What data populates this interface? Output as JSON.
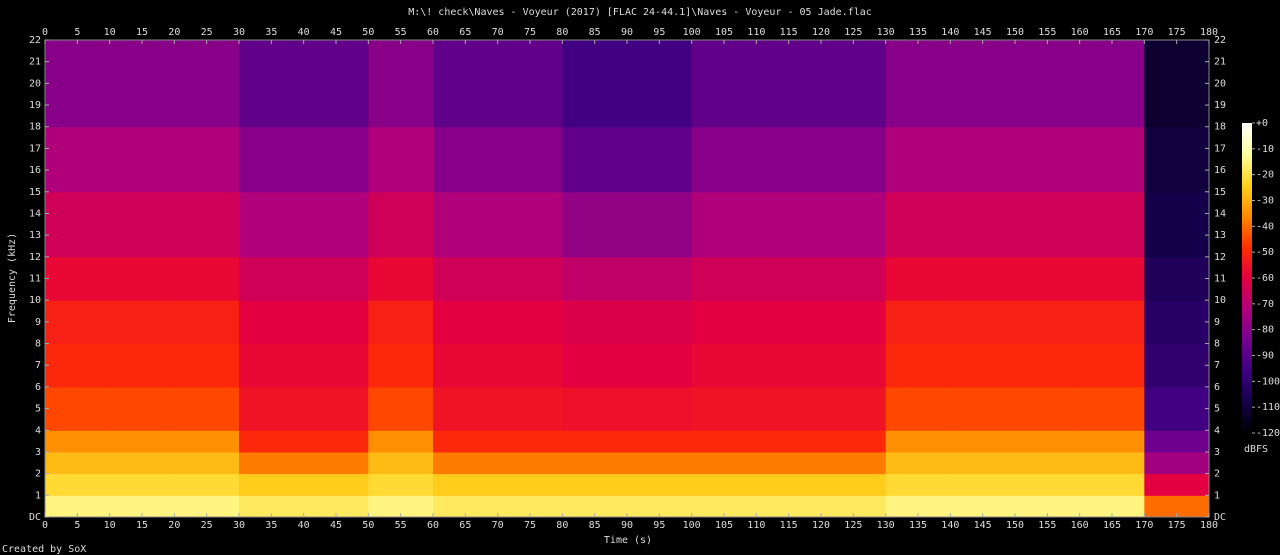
{
  "chart_data": {
    "type": "spectrogram",
    "title": "M:\\! check\\Naves - Voyeur (2017) [FLAC 24-44.1]\\Naves - Voyeur - 05 Jade.flac",
    "xlabel": "Time (s)",
    "ylabel": "Frequency (kHz)",
    "colorbar_label": "dBFS",
    "footer": "Created by SoX",
    "xlim": [
      0,
      180
    ],
    "ylim": [
      0,
      22
    ],
    "zlim": [
      -120,
      0
    ],
    "xticks": [
      0,
      5,
      10,
      15,
      20,
      25,
      30,
      35,
      40,
      45,
      50,
      55,
      60,
      65,
      70,
      75,
      80,
      85,
      90,
      95,
      100,
      105,
      110,
      115,
      120,
      125,
      130,
      135,
      140,
      145,
      150,
      155,
      160,
      165,
      170,
      175,
      180
    ],
    "yticks": [
      {
        "value": 0,
        "label": "DC"
      },
      1,
      2,
      3,
      4,
      5,
      6,
      7,
      8,
      9,
      10,
      11,
      12,
      13,
      14,
      15,
      16,
      17,
      18,
      19,
      20,
      21,
      22
    ],
    "zticks": [
      {
        "value": 0,
        "label": "+0"
      },
      -10,
      -20,
      -30,
      -40,
      -50,
      -60,
      -70,
      -80,
      -90,
      -100,
      -110,
      -120
    ],
    "time_edges": [
      0,
      10,
      20,
      30,
      40,
      50,
      60,
      70,
      80,
      90,
      100,
      110,
      120,
      130,
      140,
      150,
      160,
      170,
      180
    ],
    "freq_edges": [
      0,
      1,
      2,
      3,
      4,
      6,
      8,
      10,
      12,
      15,
      18,
      22
    ],
    "z": [
      [
        -15,
        -15,
        -15,
        -18,
        -18,
        -15,
        -18,
        -18,
        -18,
        -18,
        -18,
        -18,
        -18,
        -15,
        -15,
        -15,
        -15,
        -40
      ],
      [
        -22,
        -22,
        -22,
        -25,
        -25,
        -22,
        -25,
        -25,
        -25,
        -25,
        -25,
        -25,
        -25,
        -22,
        -22,
        -22,
        -22,
        -60
      ],
      [
        -28,
        -28,
        -28,
        -38,
        -38,
        -28,
        -38,
        -38,
        -38,
        -38,
        -38,
        -38,
        -38,
        -28,
        -28,
        -28,
        -28,
        -75
      ],
      [
        -35,
        -35,
        -35,
        -50,
        -50,
        -35,
        -50,
        -50,
        -50,
        -50,
        -50,
        -50,
        -50,
        -35,
        -35,
        -35,
        -35,
        -85
      ],
      [
        -45,
        -45,
        -45,
        -55,
        -55,
        -45,
        -55,
        -55,
        -56,
        -56,
        -55,
        -55,
        -55,
        -45,
        -45,
        -45,
        -45,
        -95
      ],
      [
        -50,
        -50,
        -50,
        -58,
        -58,
        -50,
        -58,
        -58,
        -60,
        -60,
        -58,
        -58,
        -58,
        -50,
        -50,
        -50,
        -50,
        -100
      ],
      [
        -52,
        -52,
        -52,
        -60,
        -60,
        -52,
        -60,
        -60,
        -62,
        -62,
        -60,
        -60,
        -60,
        -52,
        -52,
        -52,
        -52,
        -102
      ],
      [
        -58,
        -58,
        -58,
        -65,
        -65,
        -58,
        -65,
        -65,
        -68,
        -68,
        -65,
        -65,
        -65,
        -58,
        -58,
        -58,
        -58,
        -105
      ],
      [
        -65,
        -65,
        -65,
        -72,
        -72,
        -65,
        -72,
        -72,
        -78,
        -78,
        -72,
        -72,
        -72,
        -65,
        -65,
        -65,
        -65,
        -108
      ],
      [
        -72,
        -72,
        -72,
        -80,
        -80,
        -72,
        -80,
        -80,
        -88,
        -88,
        -80,
        -80,
        -80,
        -72,
        -72,
        -72,
        -72,
        -110
      ],
      [
        -80,
        -80,
        -80,
        -88,
        -88,
        -80,
        -88,
        -88,
        -95,
        -95,
        -88,
        -88,
        -88,
        -80,
        -80,
        -80,
        -80,
        -112
      ]
    ],
    "colormap": [
      "#000000",
      "#14004a",
      "#3c0080",
      "#74008e",
      "#b0007a",
      "#e40040",
      "#ff3000",
      "#ff8a00",
      "#ffd21e",
      "#ffffa0",
      "#ffffff"
    ]
  }
}
